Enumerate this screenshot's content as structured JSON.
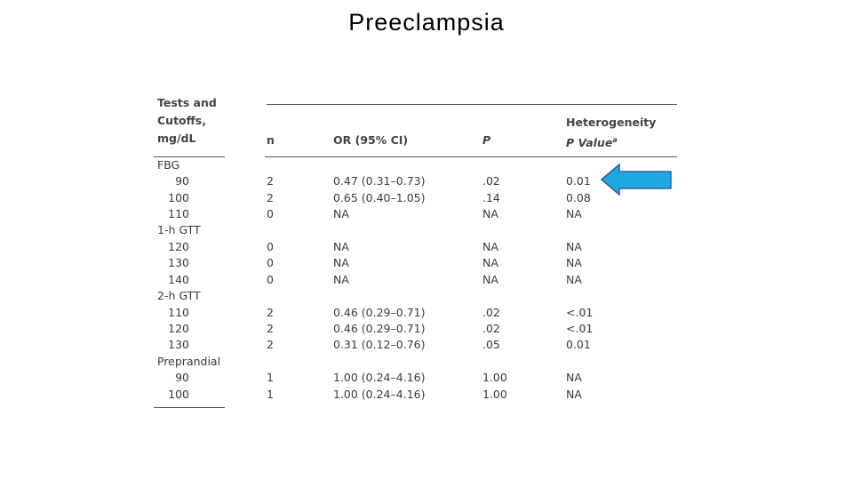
{
  "title": "Preeclampsia",
  "table": {
    "header": {
      "tests": [
        "Tests and",
        "Cutoffs,",
        "mg/dL"
      ],
      "n": "n",
      "or": "OR (95% CI)",
      "p": "P",
      "het_line1": "Heterogeneity",
      "het_line2": "P Value",
      "het_note": "a"
    },
    "groups": [
      {
        "label": "FBG",
        "rows": [
          [
            "90",
            "2",
            "0.47 (0.31–0.73)",
            ".02",
            "0.01"
          ],
          [
            "100",
            "2",
            "0.65 (0.40–1.05)",
            ".14",
            "0.08"
          ],
          [
            "110",
            "0",
            "NA",
            "NA",
            "NA"
          ]
        ]
      },
      {
        "label": "1-h GTT",
        "rows": [
          [
            "120",
            "0",
            "NA",
            "NA",
            "NA"
          ],
          [
            "130",
            "0",
            "NA",
            "NA",
            "NA"
          ],
          [
            "140",
            "0",
            "NA",
            "NA",
            "NA"
          ]
        ]
      },
      {
        "label": "2-h GTT",
        "rows": [
          [
            "110",
            "2",
            "0.46 (0.29–0.71)",
            ".02",
            "<.01"
          ],
          [
            "120",
            "2",
            "0.46 (0.29–0.71)",
            ".02",
            "<.01"
          ],
          [
            "130",
            "2",
            "0.31 (0.12–0.76)",
            ".05",
            "0.01"
          ]
        ]
      },
      {
        "label": "Preprandial",
        "rows": [
          [
            "90",
            "1",
            "1.00 (0.24–4.16)",
            "1.00",
            "NA"
          ],
          [
            "100",
            "1",
            "1.00 (0.24–4.16)",
            "1.00",
            "NA"
          ]
        ]
      }
    ]
  }
}
